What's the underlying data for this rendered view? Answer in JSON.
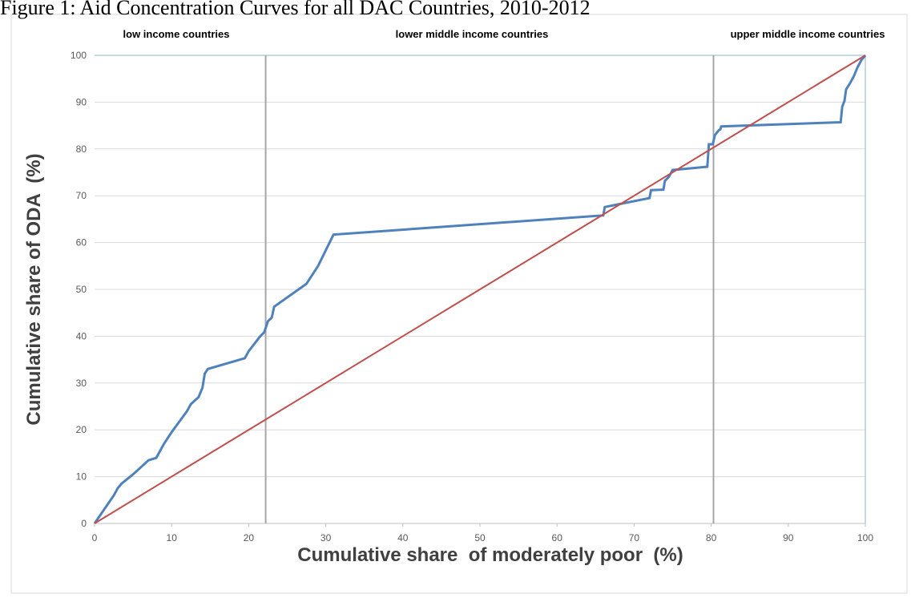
{
  "chart_data": {
    "type": "line",
    "title": "Figure 1: Aid Concentration Curves for all DAC Countries, 2010-2012",
    "xlabel": "Cumulative share  of moderately poor  (%)",
    "ylabel": "Cumulative share of ODA  (%)",
    "annotations": [
      "low income countries",
      "lower middle income countries",
      "upper middle income countries"
    ],
    "vlines": [
      22.2,
      80.3
    ],
    "vline_color": "#a6a6a6",
    "xlim": [
      0,
      100
    ],
    "ylim": [
      0,
      100
    ],
    "xticks": [
      0,
      10,
      20,
      30,
      40,
      50,
      60,
      70,
      80,
      90,
      100
    ],
    "yticks": [
      0,
      10,
      20,
      30,
      40,
      50,
      60,
      70,
      80,
      90,
      100
    ],
    "grid": true,
    "series": [
      {
        "color": "#4f81bd",
        "x": [
          0,
          2.5,
          3,
          3.5,
          5,
          7,
          8,
          9,
          10,
          12,
          12.5,
          13.5,
          14,
          14.3,
          14.7,
          19.5,
          20,
          21.5,
          22,
          22.5,
          23,
          23.3,
          27.5,
          29,
          31,
          66,
          66.2,
          72,
          72.2,
          73.8,
          74,
          74.5,
          75,
          79.5,
          79.7,
          80.2,
          80.5,
          81,
          81.2,
          81.3,
          96.8,
          97,
          97.3,
          97.5,
          98,
          98.5,
          99,
          99.5,
          100
        ],
        "values": [
          0,
          6,
          7.5,
          8.5,
          10.5,
          13.5,
          14,
          17,
          19.5,
          24,
          25.5,
          27,
          29,
          32,
          33,
          35.3,
          36.8,
          40,
          40.8,
          43.2,
          44,
          46.3,
          51.2,
          55,
          61.7,
          65.8,
          67.6,
          69.5,
          71.2,
          71.3,
          73.2,
          74,
          75.5,
          76.2,
          81,
          81,
          83,
          84,
          84.2,
          84.8,
          85.7,
          89,
          90.3,
          92.7,
          94,
          95.5,
          97.5,
          99,
          100
        ]
      },
      {
        "color": "#c0504d",
        "x": [
          0,
          100
        ],
        "values": [
          0,
          100
        ]
      }
    ]
  }
}
